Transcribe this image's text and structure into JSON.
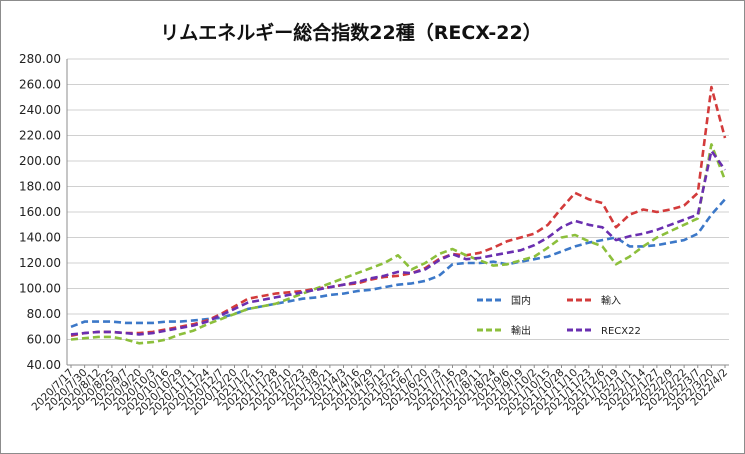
{
  "chart_data": {
    "type": "line",
    "title": "リムエネルギー総合指数22種（RECX-22）",
    "xlabel": "",
    "ylabel": "",
    "ylim": [
      40,
      280
    ],
    "y_ticks": [
      "40.00",
      "60.00",
      "80.00",
      "100.00",
      "120.00",
      "140.00",
      "160.00",
      "180.00",
      "200.00",
      "220.00",
      "240.00",
      "260.00",
      "280.00"
    ],
    "x_tick_labels": [
      "2020/7/17",
      "2020/7/30",
      "2020/8/12",
      "2020/8/25",
      "2020/9/7",
      "2020/9/20",
      "2020/10/3",
      "2020/10/16",
      "2020/10/29",
      "2020/11/11",
      "2020/11/24",
      "2020/12/7",
      "2020/12/20",
      "2021/1/2",
      "2021/1/15",
      "2021/1/28",
      "2021/2/10",
      "2021/2/23",
      "2021/3/8",
      "2021/3/21",
      "2021/4/3",
      "2021/4/16",
      "2021/4/29",
      "2021/5/12",
      "2021/5/25",
      "2021/6/7",
      "2021/6/20",
      "2021/7/3",
      "2021/7/16",
      "2021/7/29",
      "2021/8/11",
      "2021/8/24",
      "2021/9/6",
      "2021/9/19",
      "2021/10/2",
      "2021/10/15",
      "2021/10/28",
      "2021/11/10",
      "2021/11/23",
      "2021/12/6",
      "2021/12/19",
      "2022/1/1",
      "2022/1/14",
      "2022/1/27",
      "2022/2/9",
      "2022/2/22",
      "2022/3/7",
      "2022/3/20",
      "2022/4/2"
    ],
    "grid": true,
    "legend_position": "inside-right",
    "series": [
      {
        "name": "国内",
        "color": "#3c78c8",
        "x": [
          "2020/7/17",
          "2020/7/30",
          "2020/8/12",
          "2020/8/25",
          "2020/9/7",
          "2020/9/20",
          "2020/10/3",
          "2020/10/16",
          "2020/10/29",
          "2020/11/11",
          "2020/11/24",
          "2020/12/7",
          "2020/12/20",
          "2021/1/2",
          "2021/1/15",
          "2021/1/28",
          "2021/2/10",
          "2021/2/23",
          "2021/3/8",
          "2021/3/21",
          "2021/4/3",
          "2021/4/16",
          "2021/4/29",
          "2021/5/12",
          "2021/5/25",
          "2021/6/7",
          "2021/6/20",
          "2021/7/3",
          "2021/7/16",
          "2021/7/29",
          "2021/8/11",
          "2021/8/24",
          "2021/9/6",
          "2021/9/19",
          "2021/10/2",
          "2021/10/15",
          "2021/10/28",
          "2021/11/10",
          "2021/11/23",
          "2021/12/6",
          "2021/12/19",
          "2022/1/1",
          "2022/1/14",
          "2022/1/27",
          "2022/2/9",
          "2022/2/22",
          "2022/3/7",
          "2022/3/20",
          "2022/4/2"
        ],
        "values": [
          70,
          74,
          74,
          74,
          73,
          73,
          73,
          74,
          74,
          75,
          76,
          77,
          80,
          84,
          86,
          88,
          90,
          92,
          93,
          95,
          96,
          98,
          99,
          101,
          103,
          104,
          106,
          110,
          119,
          120,
          120,
          121,
          119,
          121,
          123,
          125,
          129,
          133,
          136,
          138,
          140,
          133,
          133,
          134,
          136,
          138,
          143,
          158,
          170
        ]
      },
      {
        "name": "輸入",
        "color": "#d33b3b",
        "x": [
          "2020/7/17",
          "2020/7/30",
          "2020/8/12",
          "2020/8/25",
          "2020/9/7",
          "2020/9/20",
          "2020/10/3",
          "2020/10/16",
          "2020/10/29",
          "2020/11/11",
          "2020/11/24",
          "2020/12/7",
          "2020/12/20",
          "2021/1/2",
          "2021/1/15",
          "2021/1/28",
          "2021/2/10",
          "2021/2/23",
          "2021/3/8",
          "2021/3/21",
          "2021/4/3",
          "2021/4/16",
          "2021/4/29",
          "2021/5/12",
          "2021/5/25",
          "2021/6/7",
          "2021/6/20",
          "2021/7/3",
          "2021/7/16",
          "2021/7/29",
          "2021/8/11",
          "2021/8/24",
          "2021/9/6",
          "2021/9/19",
          "2021/10/2",
          "2021/10/15",
          "2021/10/28",
          "2021/11/10",
          "2021/11/23",
          "2021/12/6",
          "2021/12/19",
          "2022/1/1",
          "2022/1/14",
          "2022/1/27",
          "2022/2/9",
          "2022/2/22",
          "2022/3/7",
          "2022/3/20",
          "2022/4/2"
        ],
        "values": [
          63,
          65,
          66,
          66,
          65,
          65,
          66,
          68,
          70,
          72,
          75,
          80,
          86,
          92,
          94,
          96,
          97,
          98,
          100,
          101,
          103,
          104,
          107,
          109,
          110,
          112,
          116,
          123,
          127,
          126,
          128,
          132,
          137,
          140,
          143,
          150,
          163,
          175,
          170,
          167,
          148,
          158,
          162,
          160,
          162,
          165,
          175,
          258,
          218
        ]
      },
      {
        "name": "輸出",
        "color": "#8cbf3c",
        "x": [
          "2020/7/17",
          "2020/7/30",
          "2020/8/12",
          "2020/8/25",
          "2020/9/7",
          "2020/9/20",
          "2020/10/3",
          "2020/10/16",
          "2020/10/29",
          "2020/11/11",
          "2020/11/24",
          "2020/12/7",
          "2020/12/20",
          "2021/1/2",
          "2021/1/15",
          "2021/1/28",
          "2021/2/10",
          "2021/2/23",
          "2021/3/8",
          "2021/3/21",
          "2021/4/3",
          "2021/4/16",
          "2021/4/29",
          "2021/5/12",
          "2021/5/25",
          "2021/6/7",
          "2021/6/20",
          "2021/7/3",
          "2021/7/16",
          "2021/7/29",
          "2021/8/11",
          "2021/8/24",
          "2021/9/6",
          "2021/9/19",
          "2021/10/2",
          "2021/10/15",
          "2021/10/28",
          "2021/11/10",
          "2021/11/23",
          "2021/12/6",
          "2021/12/19",
          "2022/1/1",
          "2022/1/14",
          "2022/1/27",
          "2022/2/9",
          "2022/2/22",
          "2022/3/7",
          "2022/3/20",
          "2022/4/2"
        ],
        "values": [
          60,
          61,
          62,
          62,
          60,
          57,
          58,
          60,
          64,
          67,
          72,
          76,
          80,
          84,
          86,
          88,
          92,
          96,
          100,
          104,
          108,
          112,
          116,
          120,
          126,
          115,
          120,
          127,
          131,
          126,
          122,
          118,
          119,
          122,
          125,
          132,
          140,
          142,
          137,
          133,
          119,
          125,
          133,
          140,
          145,
          150,
          155,
          213,
          185
        ]
      },
      {
        "name": "RECX22",
        "color": "#6a2fb0",
        "x": [
          "2020/7/17",
          "2020/7/30",
          "2020/8/12",
          "2020/8/25",
          "2020/9/7",
          "2020/9/20",
          "2020/10/3",
          "2020/10/16",
          "2020/10/29",
          "2020/11/11",
          "2020/11/24",
          "2020/12/7",
          "2020/12/20",
          "2021/1/2",
          "2021/1/15",
          "2021/1/28",
          "2021/2/10",
          "2021/2/23",
          "2021/3/8",
          "2021/3/21",
          "2021/4/3",
          "2021/4/16",
          "2021/4/29",
          "2021/5/12",
          "2021/5/25",
          "2021/6/7",
          "2021/6/20",
          "2021/7/3",
          "2021/7/16",
          "2021/7/29",
          "2021/8/11",
          "2021/8/24",
          "2021/9/6",
          "2021/9/19",
          "2021/10/2",
          "2021/10/15",
          "2021/10/28",
          "2021/11/10",
          "2021/11/23",
          "2021/12/6",
          "2021/12/19",
          "2022/1/1",
          "2022/1/14",
          "2022/1/27",
          "2022/2/9",
          "2022/2/22",
          "2022/3/7",
          "2022/3/20",
          "2022/4/2"
        ],
        "values": [
          64,
          65,
          66,
          66,
          65,
          64,
          65,
          67,
          69,
          71,
          74,
          79,
          84,
          89,
          91,
          93,
          95,
          97,
          99,
          101,
          103,
          105,
          108,
          110,
          113,
          112,
          115,
          122,
          127,
          123,
          124,
          126,
          128,
          130,
          134,
          140,
          148,
          153,
          150,
          148,
          138,
          141,
          143,
          146,
          150,
          154,
          158,
          208,
          193
        ]
      }
    ]
  }
}
